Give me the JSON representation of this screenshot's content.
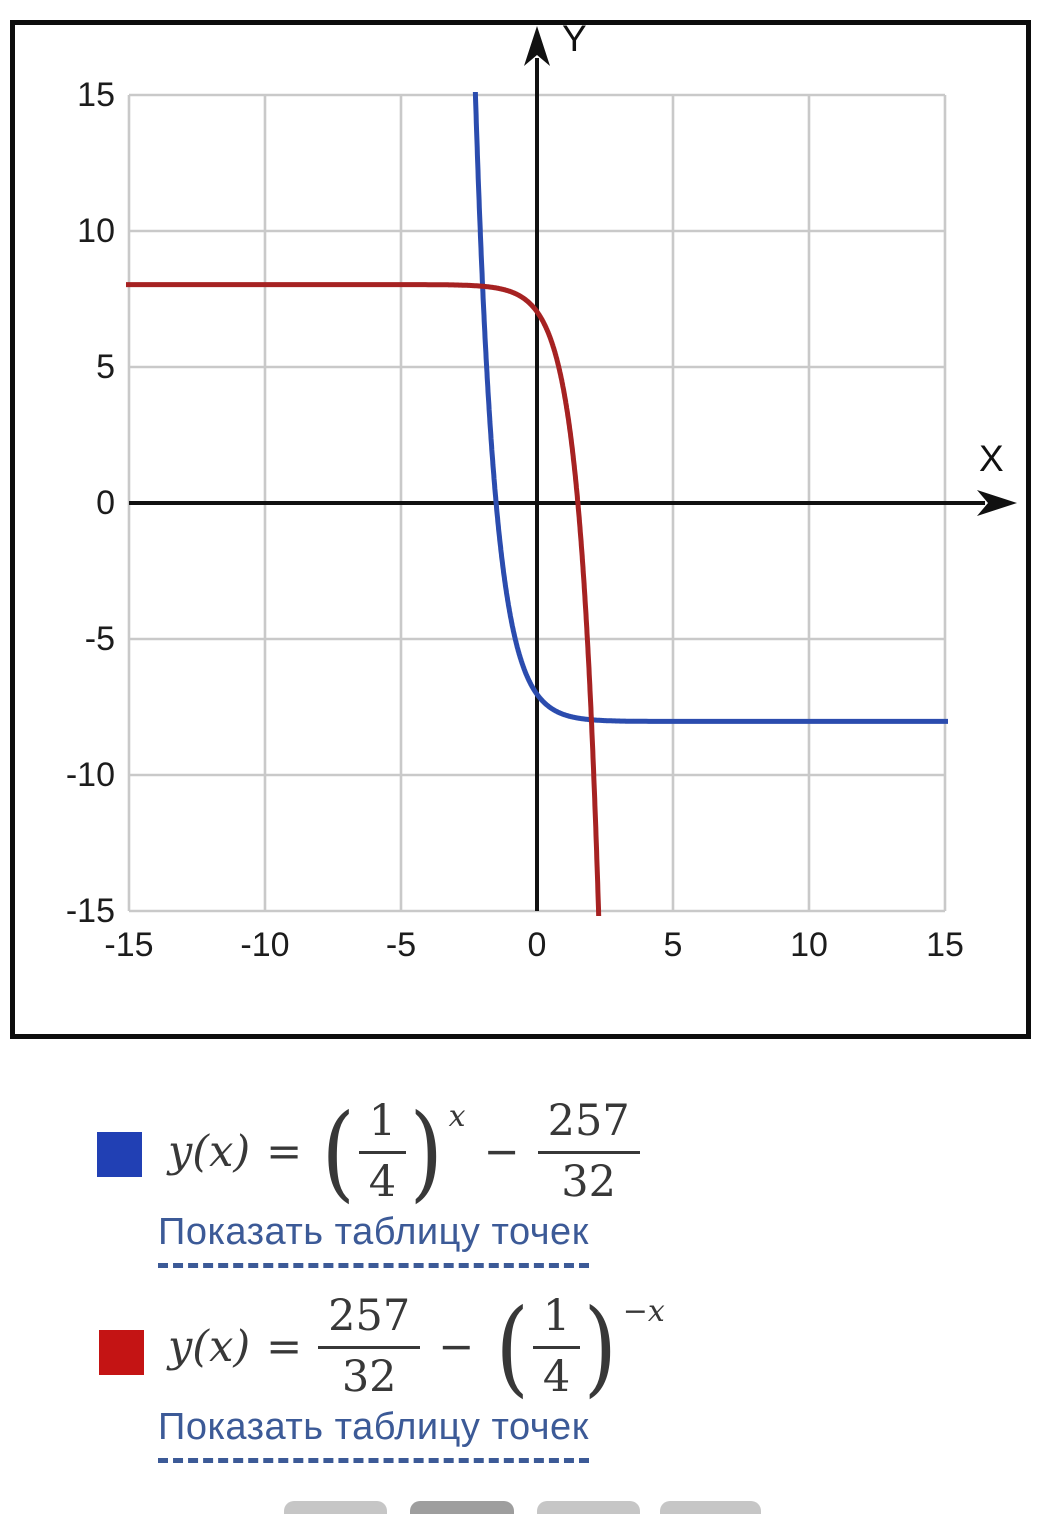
{
  "graph": {
    "x_axis_label": "X",
    "y_axis_label": "Y"
  },
  "chart_data": {
    "type": "line",
    "title": "",
    "x_range": [
      -15,
      15
    ],
    "y_range": [
      -15,
      15
    ],
    "grid": true,
    "grid_step": 5,
    "x_ticks": [
      -15,
      -10,
      -5,
      0,
      5,
      10,
      15
    ],
    "y_ticks": [
      15,
      10,
      5,
      0,
      -5,
      -10,
      -15
    ],
    "axis_labels": {
      "x": "X",
      "y": "Y"
    },
    "axis_color": "#111111",
    "grid_color": "#c9c9c9",
    "series": [
      {
        "name": "y(x) = (1/4)^x − 257/32",
        "color": "#2b4cae",
        "formula_text": "(1/4)^x − 257/32",
        "fn": {
          "coef": 1,
          "base": 0.25,
          "xsign": 1,
          "const": -8.03125
        },
        "horizontal_asymptote": -8.03125,
        "x_intercept": -1.5,
        "y_intercept": -7.03125
      },
      {
        "name": "y(x) = 257/32 − (1/4)^(−x)",
        "color": "#a62222",
        "formula_text": "257/32 − (1/4)^(−x)",
        "fn": {
          "coef": -1,
          "base": 0.25,
          "xsign": -1,
          "const": 8.03125
        },
        "horizontal_asymptote": 8.03125,
        "x_intercept": 1.5,
        "y_intercept": 7.03125
      }
    ]
  },
  "legend": {
    "items": [
      {
        "swatch_color": "#2140b4",
        "link_label": "Показать таблицу точек",
        "formula": {
          "lhs": "y(x)",
          "eq": "=",
          "lparen": "(",
          "num1": "1",
          "den1": "4",
          "rparen": ")",
          "sup": "x",
          "minus": "−",
          "num2": "257",
          "den2": "32"
        }
      },
      {
        "swatch_color": "#c41414",
        "link_label": "Показать таблицу точек",
        "formula": {
          "lhs": "y(x)",
          "eq": "=",
          "num1": "257",
          "den1": "32",
          "minus": "−",
          "lparen": "(",
          "num2": "1",
          "den2": "4",
          "rparen": ")",
          "sup": "−x"
        }
      }
    ]
  },
  "bottom_buttons": [
    {
      "color": "#c6c6c6"
    },
    {
      "color": "#9e9e9e"
    },
    {
      "color": "#c6c6c6"
    },
    {
      "color": "#c6c6c6"
    }
  ]
}
